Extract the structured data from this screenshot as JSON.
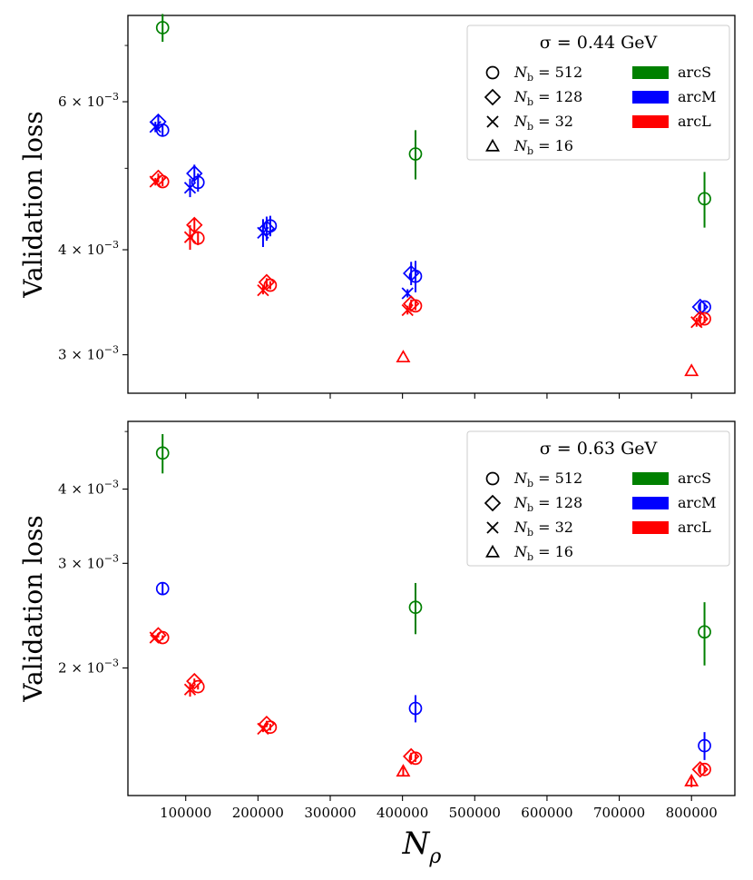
{
  "figure": {
    "xlabel_main": "N",
    "xlabel_sub": "ρ",
    "ylabel": "Validation loss"
  },
  "colors": {
    "arcS": "#008000",
    "arcM": "#0000ff",
    "arcL": "#ff0000"
  },
  "chart_data": [
    {
      "type": "scatter",
      "title": "σ = 0.44 GeV",
      "ylabel": "Validation loss",
      "yscale": "log",
      "ylim": [
        0.0027,
        0.0076
      ],
      "xlim": [
        20000,
        860000
      ],
      "xticks": [
        100000,
        200000,
        300000,
        400000,
        500000,
        600000,
        700000,
        800000
      ],
      "xtick_labels": [
        "100000",
        "200000",
        "300000",
        "400000",
        "500000",
        "600000",
        "700000",
        "800000"
      ],
      "yticks": [
        0.003,
        0.004,
        0.006
      ],
      "ytick_labels": [
        {
          "mant": "3",
          "exp": "−3"
        },
        {
          "mant": "4",
          "exp": "−3"
        },
        {
          "mant": "6",
          "exp": "−3"
        }
      ],
      "legend": {
        "title": "σ = 0.44 GeV",
        "location": "top-right",
        "markers": [
          {
            "marker": "circle",
            "label": "N",
            "sub": "b",
            "value": " = 512"
          },
          {
            "marker": "diamond",
            "label": "N",
            "sub": "b",
            "value": " = 128"
          },
          {
            "marker": "x",
            "label": "N",
            "sub": "b",
            "value": " = 32"
          },
          {
            "marker": "triangle",
            "label": "N",
            "sub": "b",
            "value": " = 16"
          }
        ],
        "colors": [
          {
            "arc": "arcS",
            "label": "arcS"
          },
          {
            "arc": "arcM",
            "label": "arcM"
          },
          {
            "arc": "arcL",
            "label": "arcL"
          }
        ]
      },
      "points": [
        {
          "x": 68000,
          "y": 0.00735,
          "err": 0.00028,
          "arc": "arcS",
          "marker": "circle"
        },
        {
          "x": 68000,
          "y": 0.00555,
          "err": 8e-05,
          "arc": "arcM",
          "marker": "circle"
        },
        {
          "x": 62000,
          "y": 0.00568,
          "err": 0.0001,
          "arc": "arcM",
          "marker": "diamond"
        },
        {
          "x": 58000,
          "y": 0.0056,
          "err": 8e-05,
          "arc": "arcM",
          "marker": "x"
        },
        {
          "x": 68000,
          "y": 0.00482,
          "err": 6e-05,
          "arc": "arcL",
          "marker": "circle"
        },
        {
          "x": 62000,
          "y": 0.00487,
          "err": 6e-05,
          "arc": "arcL",
          "marker": "diamond"
        },
        {
          "x": 58000,
          "y": 0.00482,
          "err": 5e-05,
          "arc": "arcL",
          "marker": "x"
        },
        {
          "x": 117000,
          "y": 0.00481,
          "err": 0.00012,
          "arc": "arcM",
          "marker": "circle"
        },
        {
          "x": 112000,
          "y": 0.00493,
          "err": 0.00012,
          "arc": "arcM",
          "marker": "diamond"
        },
        {
          "x": 106000,
          "y": 0.00474,
          "err": 0.00012,
          "arc": "arcM",
          "marker": "x"
        },
        {
          "x": 117000,
          "y": 0.00413,
          "err": 8e-05,
          "arc": "arcL",
          "marker": "circle"
        },
        {
          "x": 112000,
          "y": 0.00428,
          "err": 8e-05,
          "arc": "arcL",
          "marker": "diamond"
        },
        {
          "x": 106000,
          "y": 0.00414,
          "err": 0.00014,
          "arc": "arcL",
          "marker": "x"
        },
        {
          "x": 217000,
          "y": 0.00427,
          "err": 0.00012,
          "arc": "arcM",
          "marker": "circle"
        },
        {
          "x": 212000,
          "y": 0.00424,
          "err": 0.00014,
          "arc": "arcM",
          "marker": "diamond"
        },
        {
          "x": 207000,
          "y": 0.00419,
          "err": 0.00016,
          "arc": "arcM",
          "marker": "x"
        },
        {
          "x": 217000,
          "y": 0.00363,
          "err": 4e-05,
          "arc": "arcL",
          "marker": "circle"
        },
        {
          "x": 212000,
          "y": 0.00366,
          "err": 4e-05,
          "arc": "arcL",
          "marker": "diamond"
        },
        {
          "x": 207000,
          "y": 0.00358,
          "err": 4e-05,
          "arc": "arcL",
          "marker": "x"
        },
        {
          "x": 418000,
          "y": 0.0052,
          "err": 0.00035,
          "arc": "arcS",
          "marker": "circle"
        },
        {
          "x": 418000,
          "y": 0.00372,
          "err": 0.00016,
          "arc": "arcM",
          "marker": "circle"
        },
        {
          "x": 412000,
          "y": 0.00375,
          "err": 0.00012,
          "arc": "arcM",
          "marker": "diamond"
        },
        {
          "x": 407000,
          "y": 0.00355,
          "err": 4e-05,
          "arc": "arcM",
          "marker": "x"
        },
        {
          "x": 418000,
          "y": 0.00343,
          "err": 4e-05,
          "arc": "arcL",
          "marker": "circle"
        },
        {
          "x": 412000,
          "y": 0.00345,
          "err": 4e-05,
          "arc": "arcL",
          "marker": "diamond"
        },
        {
          "x": 407000,
          "y": 0.00339,
          "err": 4e-05,
          "arc": "arcL",
          "marker": "x"
        },
        {
          "x": 401000,
          "y": 0.00298,
          "err": 0,
          "arc": "arcL",
          "marker": "triangle"
        },
        {
          "x": 818000,
          "y": 0.0046,
          "err": 0.00035,
          "arc": "arcS",
          "marker": "circle"
        },
        {
          "x": 818000,
          "y": 0.00342,
          "err": 4e-05,
          "arc": "arcM",
          "marker": "circle"
        },
        {
          "x": 812000,
          "y": 0.00342,
          "err": 4e-05,
          "arc": "arcM",
          "marker": "diamond"
        },
        {
          "x": 818000,
          "y": 0.00331,
          "err": 4e-05,
          "arc": "arcL",
          "marker": "circle"
        },
        {
          "x": 812000,
          "y": 0.00331,
          "err": 4e-05,
          "arc": "arcL",
          "marker": "diamond"
        },
        {
          "x": 807000,
          "y": 0.00328,
          "err": 4e-05,
          "arc": "arcL",
          "marker": "x"
        },
        {
          "x": 800000,
          "y": 0.00287,
          "err": 0,
          "arc": "arcL",
          "marker": "triangle"
        }
      ]
    },
    {
      "type": "scatter",
      "title": "σ = 0.63 GeV",
      "ylabel": "Validation loss",
      "yscale": "log",
      "ylim": [
        0.00122,
        0.0052
      ],
      "xlim": [
        20000,
        860000
      ],
      "xticks": [
        100000,
        200000,
        300000,
        400000,
        500000,
        600000,
        700000,
        800000
      ],
      "xtick_labels": [
        "100000",
        "200000",
        "300000",
        "400000",
        "500000",
        "600000",
        "700000",
        "800000"
      ],
      "yticks": [
        0.002,
        0.003,
        0.004
      ],
      "ytick_labels": [
        {
          "mant": "2",
          "exp": "−3"
        },
        {
          "mant": "3",
          "exp": "−3"
        },
        {
          "mant": "4",
          "exp": "−3"
        }
      ],
      "legend": {
        "title": "σ = 0.63 GeV",
        "location": "top-right",
        "markers": [
          {
            "marker": "circle",
            "label": "N",
            "sub": "b",
            "value": " = 512"
          },
          {
            "marker": "diamond",
            "label": "N",
            "sub": "b",
            "value": " = 128"
          },
          {
            "marker": "x",
            "label": "N",
            "sub": "b",
            "value": " = 32"
          },
          {
            "marker": "triangle",
            "label": "N",
            "sub": "b",
            "value": " = 16"
          }
        ],
        "colors": [
          {
            "arc": "arcS",
            "label": "arcS"
          },
          {
            "arc": "arcM",
            "label": "arcM"
          },
          {
            "arc": "arcL",
            "label": "arcL"
          }
        ]
      },
      "points": [
        {
          "x": 68000,
          "y": 0.0046,
          "err": 0.00035,
          "arc": "arcS",
          "marker": "circle"
        },
        {
          "x": 68000,
          "y": 0.00272,
          "err": 6e-05,
          "arc": "arcM",
          "marker": "circle"
        },
        {
          "x": 68000,
          "y": 0.00225,
          "err": 2e-05,
          "arc": "arcL",
          "marker": "circle"
        },
        {
          "x": 62000,
          "y": 0.00227,
          "err": 2e-05,
          "arc": "arcL",
          "marker": "diamond"
        },
        {
          "x": 58000,
          "y": 0.00225,
          "err": 2e-05,
          "arc": "arcL",
          "marker": "x"
        },
        {
          "x": 117000,
          "y": 0.00186,
          "err": 2e-05,
          "arc": "arcL",
          "marker": "circle"
        },
        {
          "x": 112000,
          "y": 0.0019,
          "err": 2e-05,
          "arc": "arcL",
          "marker": "diamond"
        },
        {
          "x": 106000,
          "y": 0.00184,
          "err": 5e-05,
          "arc": "arcL",
          "marker": "x"
        },
        {
          "x": 217000,
          "y": 0.00159,
          "err": 2e-05,
          "arc": "arcL",
          "marker": "circle"
        },
        {
          "x": 212000,
          "y": 0.00161,
          "err": 2e-05,
          "arc": "arcL",
          "marker": "diamond"
        },
        {
          "x": 207000,
          "y": 0.00158,
          "err": 2e-05,
          "arc": "arcL",
          "marker": "x"
        },
        {
          "x": 418000,
          "y": 0.00253,
          "err": 0.00025,
          "arc": "arcS",
          "marker": "circle"
        },
        {
          "x": 418000,
          "y": 0.00171,
          "err": 9e-05,
          "arc": "arcM",
          "marker": "circle"
        },
        {
          "x": 418000,
          "y": 0.00141,
          "err": 2e-05,
          "arc": "arcL",
          "marker": "circle"
        },
        {
          "x": 412000,
          "y": 0.00142,
          "err": 2e-05,
          "arc": "arcL",
          "marker": "diamond"
        },
        {
          "x": 401000,
          "y": 0.00134,
          "err": 2e-05,
          "arc": "arcL",
          "marker": "triangle"
        },
        {
          "x": 818000,
          "y": 0.0023,
          "err": 0.00028,
          "arc": "arcS",
          "marker": "circle"
        },
        {
          "x": 818000,
          "y": 0.00148,
          "err": 8e-05,
          "arc": "arcM",
          "marker": "circle"
        },
        {
          "x": 818000,
          "y": 0.00135,
          "err": 2e-05,
          "arc": "arcL",
          "marker": "circle"
        },
        {
          "x": 812000,
          "y": 0.00135,
          "err": 2e-05,
          "arc": "arcL",
          "marker": "diamond"
        },
        {
          "x": 800000,
          "y": 0.00129,
          "err": 3e-05,
          "arc": "arcL",
          "marker": "triangle"
        }
      ]
    }
  ]
}
